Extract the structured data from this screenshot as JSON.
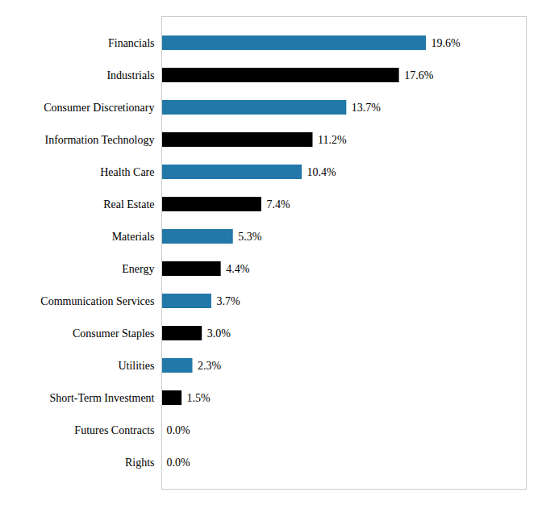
{
  "chart_data": {
    "type": "bar",
    "orientation": "horizontal",
    "categories": [
      "Financials",
      "Industrials",
      "Consumer Discretionary",
      "Information Technology",
      "Health Care",
      "Real Estate",
      "Materials",
      "Energy",
      "Communication Services",
      "Consumer Staples",
      "Utilities",
      "Short-Term Investment",
      "Futures Contracts",
      "Rights"
    ],
    "values": [
      19.6,
      17.6,
      13.7,
      11.2,
      10.4,
      7.4,
      5.3,
      4.4,
      3.7,
      3.0,
      2.3,
      1.5,
      0.0,
      0.0
    ],
    "value_labels": [
      "19.6%",
      "17.6%",
      "13.7%",
      "11.2%",
      "10.4%",
      "7.4%",
      "5.3%",
      "4.4%",
      "3.7%",
      "3.0%",
      "2.3%",
      "1.5%",
      "0.0%",
      "0.0%"
    ],
    "colors": [
      "#2278a8",
      "#000000",
      "#2278a8",
      "#000000",
      "#2278a8",
      "#000000",
      "#2278a8",
      "#000000",
      "#2278a8",
      "#000000",
      "#2278a8",
      "#000000",
      "#000000",
      "#000000"
    ],
    "xlim": [
      0,
      27
    ],
    "data_labels": true,
    "tick_labels": "y",
    "grid": false
  }
}
